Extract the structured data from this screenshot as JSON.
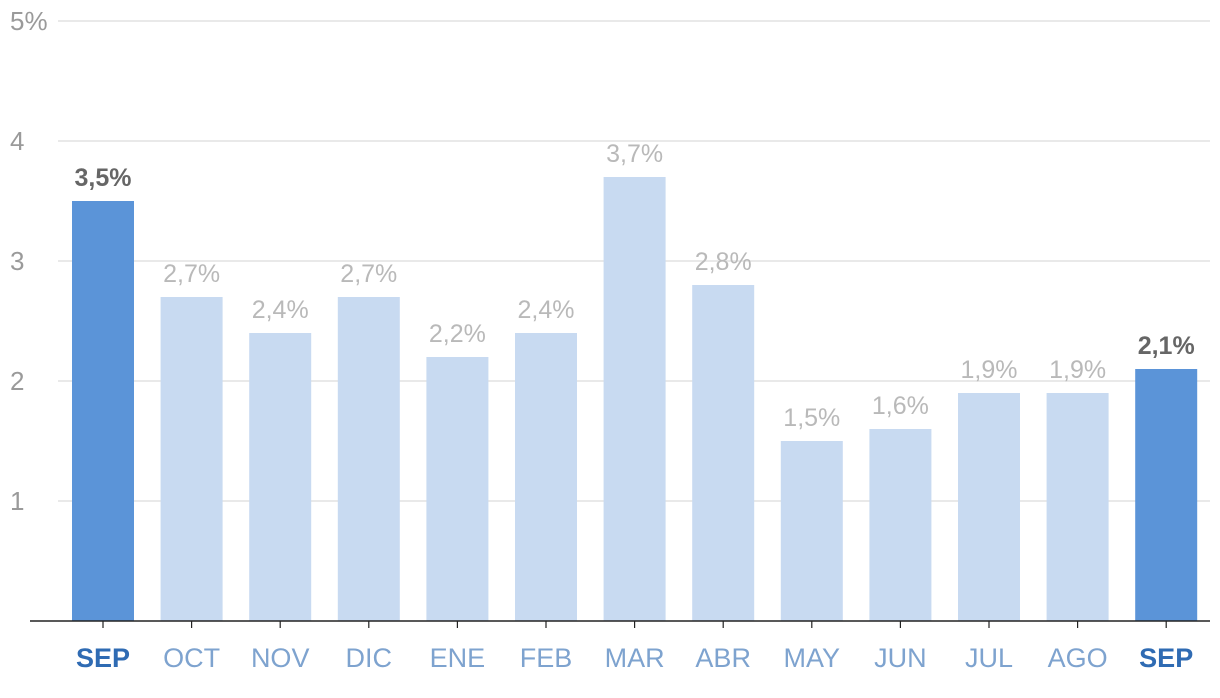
{
  "chart_data": {
    "type": "bar",
    "categories": [
      "SEP",
      "OCT",
      "NOV",
      "DIC",
      "ENE",
      "FEB",
      "MAR",
      "ABR",
      "MAY",
      "JUN",
      "JUL",
      "AGO",
      "SEP"
    ],
    "values": [
      3.5,
      2.7,
      2.4,
      2.7,
      2.2,
      2.4,
      3.7,
      2.8,
      1.5,
      1.6,
      1.9,
      1.9,
      2.1
    ],
    "value_labels": [
      "3,5%",
      "2,7%",
      "2,4%",
      "2,7%",
      "2,2%",
      "2,4%",
      "3,7%",
      "2,8%",
      "1,5%",
      "1,6%",
      "1,9%",
      "1,9%",
      "2,1%"
    ],
    "highlighted": [
      true,
      false,
      false,
      false,
      false,
      false,
      false,
      false,
      false,
      false,
      false,
      false,
      true
    ],
    "ylim": [
      0,
      5
    ],
    "y_ticks": [
      {
        "value": 1,
        "label": "1"
      },
      {
        "value": 2,
        "label": "2"
      },
      {
        "value": 3,
        "label": "3"
      },
      {
        "value": 4,
        "label": "4"
      },
      {
        "value": 5,
        "label": "5%"
      }
    ],
    "grid": true,
    "colors": {
      "bar_normal": "#c8daf1",
      "bar_highlight": "#5b94d8",
      "grid": "#dcdcdc",
      "axis": "#222222"
    },
    "title": "",
    "xlabel": "",
    "ylabel": ""
  }
}
